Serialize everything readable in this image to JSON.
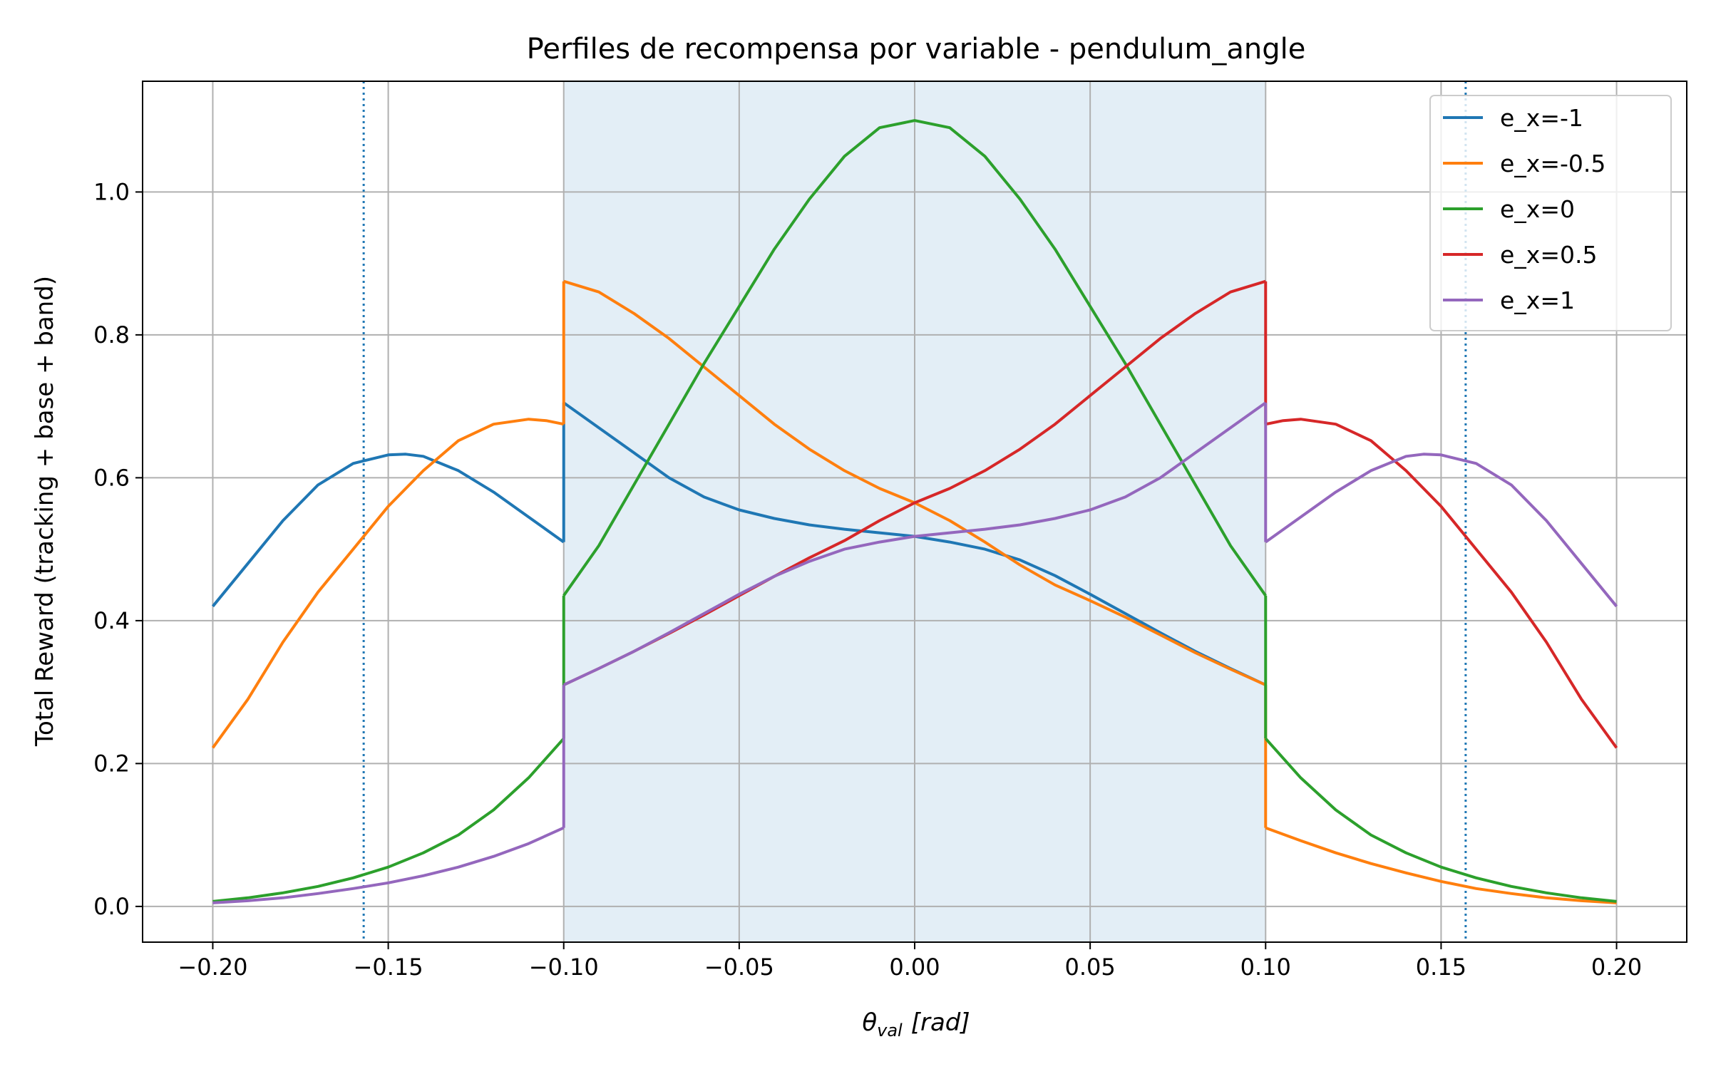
{
  "chart_data": {
    "type": "line",
    "title": "Perfiles de recompensa por variable - pendulum_angle",
    "xlabel": "θ",
    "xlabel_sub": "val",
    "xlabel_unit": "[rad]",
    "ylabel": "Total Reward (tracking + base + band)",
    "xlim": [
      -0.22,
      0.22
    ],
    "ylim": [
      -0.05,
      1.155
    ],
    "xticks": [
      -0.2,
      -0.15,
      -0.1,
      -0.05,
      0.0,
      0.05,
      0.1,
      0.15,
      0.2
    ],
    "xtick_labels": [
      "−0.20",
      "−0.15",
      "−0.10",
      "−0.05",
      "0.00",
      "0.05",
      "0.10",
      "0.15",
      "0.20"
    ],
    "yticks": [
      0.0,
      0.2,
      0.4,
      0.6,
      0.8,
      1.0
    ],
    "ytick_labels": [
      "0.0",
      "0.2",
      "0.4",
      "0.6",
      "0.8",
      "1.0"
    ],
    "grid": true,
    "legend_position": "top-right",
    "shaded_band": {
      "x0": -0.1,
      "x1": 0.1,
      "color": "#e3eef6"
    },
    "vertical_lines": [
      {
        "x": -0.157,
        "style": "dotted",
        "color": "#1f77b4"
      },
      {
        "x": 0.157,
        "style": "dotted",
        "color": "#1f77b4"
      }
    ],
    "series": [
      {
        "name": "e_x=-1",
        "color": "#1f77b4",
        "segments": [
          {
            "x": [
              -0.2,
              -0.19,
              -0.18,
              -0.17,
              -0.16,
              -0.15,
              -0.145,
              -0.14,
              -0.13,
              -0.12,
              -0.11,
              -0.1
            ],
            "y": [
              0.42,
              0.48,
              0.54,
              0.59,
              0.62,
              0.632,
              0.633,
              0.63,
              0.61,
              0.58,
              0.545,
              0.51
            ]
          },
          {
            "x": [
              -0.1,
              -0.09,
              -0.08,
              -0.07,
              -0.06,
              -0.05,
              -0.04,
              -0.03,
              -0.02,
              -0.01,
              0.0,
              0.01,
              0.02,
              0.03,
              0.04,
              0.05,
              0.06,
              0.07,
              0.08,
              0.09,
              0.1
            ],
            "y": [
              0.705,
              0.67,
              0.635,
              0.6,
              0.573,
              0.555,
              0.543,
              0.534,
              0.528,
              0.523,
              0.518,
              0.51,
              0.5,
              0.485,
              0.463,
              0.437,
              0.41,
              0.383,
              0.357,
              0.333,
              0.31
            ]
          }
        ]
      },
      {
        "name": "e_x=-0.5",
        "color": "#ff7f0e",
        "segments": [
          {
            "x": [
              -0.2,
              -0.19,
              -0.18,
              -0.17,
              -0.16,
              -0.15,
              -0.14,
              -0.13,
              -0.12,
              -0.11,
              -0.105,
              -0.1
            ],
            "y": [
              0.222,
              0.29,
              0.37,
              0.44,
              0.5,
              0.56,
              0.61,
              0.652,
              0.675,
              0.682,
              0.68,
              0.675
            ]
          },
          {
            "x": [
              -0.1,
              -0.09,
              -0.08,
              -0.07,
              -0.06,
              -0.05,
              -0.04,
              -0.03,
              -0.02,
              -0.01,
              0.0,
              0.01,
              0.02,
              0.03,
              0.04,
              0.05,
              0.06,
              0.07,
              0.08,
              0.09,
              0.1
            ],
            "y": [
              0.875,
              0.86,
              0.83,
              0.795,
              0.755,
              0.715,
              0.675,
              0.64,
              0.61,
              0.585,
              0.565,
              0.54,
              0.51,
              0.478,
              0.45,
              0.428,
              0.405,
              0.38,
              0.355,
              0.332,
              0.31
            ]
          },
          {
            "x": [
              0.1,
              0.11,
              0.12,
              0.13,
              0.14,
              0.15,
              0.16,
              0.17,
              0.18,
              0.19,
              0.2
            ],
            "y": [
              0.11,
              0.092,
              0.075,
              0.06,
              0.047,
              0.035,
              0.025,
              0.018,
              0.012,
              0.008,
              0.005
            ]
          }
        ]
      },
      {
        "name": "e_x=0",
        "color": "#2ca02c",
        "segments": [
          {
            "x": [
              -0.2,
              -0.19,
              -0.18,
              -0.17,
              -0.16,
              -0.15,
              -0.14,
              -0.13,
              -0.12,
              -0.11,
              -0.1
            ],
            "y": [
              0.007,
              0.012,
              0.019,
              0.028,
              0.04,
              0.055,
              0.075,
              0.1,
              0.135,
              0.18,
              0.235
            ]
          },
          {
            "x": [
              -0.1,
              -0.09,
              -0.08,
              -0.07,
              -0.06,
              -0.05,
              -0.04,
              -0.03,
              -0.02,
              -0.01,
              0.0,
              0.01,
              0.02,
              0.03,
              0.04,
              0.05,
              0.06,
              0.07,
              0.08,
              0.09,
              0.1
            ],
            "y": [
              0.435,
              0.505,
              0.59,
              0.675,
              0.76,
              0.84,
              0.92,
              0.99,
              1.05,
              1.09,
              1.1,
              1.09,
              1.05,
              0.99,
              0.92,
              0.84,
              0.76,
              0.675,
              0.59,
              0.505,
              0.435
            ]
          },
          {
            "x": [
              0.1,
              0.11,
              0.12,
              0.13,
              0.14,
              0.15,
              0.16,
              0.17,
              0.18,
              0.19,
              0.2
            ],
            "y": [
              0.235,
              0.18,
              0.135,
              0.1,
              0.075,
              0.055,
              0.04,
              0.028,
              0.019,
              0.012,
              0.007
            ]
          }
        ]
      },
      {
        "name": "e_x=0.5",
        "color": "#d62728",
        "segments": [
          {
            "x": [
              -0.1,
              -0.09,
              -0.08,
              -0.07,
              -0.06,
              -0.05,
              -0.04,
              -0.03,
              -0.02,
              -0.01,
              0.0,
              0.01,
              0.02,
              0.03,
              0.04,
              0.05,
              0.06,
              0.07,
              0.08,
              0.09,
              0.1
            ],
            "y": [
              0.31,
              0.333,
              0.357,
              0.382,
              0.408,
              0.435,
              0.462,
              0.488,
              0.512,
              0.54,
              0.565,
              0.585,
              0.61,
              0.64,
              0.675,
              0.715,
              0.755,
              0.795,
              0.83,
              0.86,
              0.875
            ]
          },
          {
            "x": [
              0.1,
              0.105,
              0.11,
              0.12,
              0.13,
              0.14,
              0.15,
              0.16,
              0.17,
              0.18,
              0.19,
              0.2
            ],
            "y": [
              0.675,
              0.68,
              0.682,
              0.675,
              0.652,
              0.61,
              0.56,
              0.5,
              0.44,
              0.37,
              0.29,
              0.222
            ]
          }
        ]
      },
      {
        "name": "e_x=1",
        "color": "#9467bd",
        "segments": [
          {
            "x": [
              -0.2,
              -0.19,
              -0.18,
              -0.17,
              -0.16,
              -0.15,
              -0.14,
              -0.13,
              -0.12,
              -0.11,
              -0.1
            ],
            "y": [
              0.005,
              0.008,
              0.012,
              0.018,
              0.025,
              0.033,
              0.043,
              0.055,
              0.07,
              0.088,
              0.11
            ]
          },
          {
            "x": [
              -0.1,
              -0.09,
              -0.08,
              -0.07,
              -0.06,
              -0.05,
              -0.04,
              -0.03,
              -0.02,
              -0.01,
              0.0,
              0.01,
              0.02,
              0.03,
              0.04,
              0.05,
              0.06,
              0.07,
              0.08,
              0.09,
              0.1
            ],
            "y": [
              0.31,
              0.333,
              0.357,
              0.383,
              0.41,
              0.437,
              0.462,
              0.483,
              0.5,
              0.51,
              0.518,
              0.523,
              0.528,
              0.534,
              0.543,
              0.555,
              0.573,
              0.6,
              0.635,
              0.67,
              0.705
            ]
          },
          {
            "x": [
              0.1,
              0.11,
              0.12,
              0.13,
              0.14,
              0.145,
              0.15,
              0.16,
              0.17,
              0.18,
              0.19,
              0.2
            ],
            "y": [
              0.51,
              0.545,
              0.58,
              0.61,
              0.63,
              0.633,
              0.632,
              0.62,
              0.59,
              0.54,
              0.48,
              0.42
            ]
          }
        ]
      }
    ]
  }
}
